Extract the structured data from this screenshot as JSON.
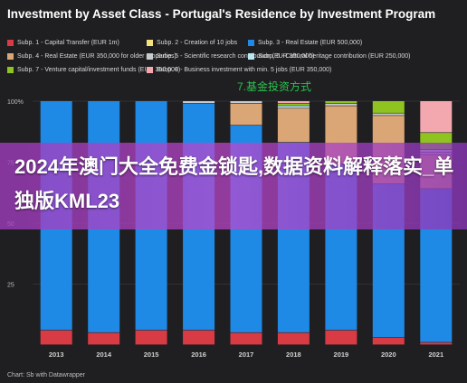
{
  "chart_data": {
    "type": "bar",
    "stacked": true,
    "title": "Investment by Asset Class - Portugal's Residence by Investment Program",
    "categories": [
      "2013",
      "2014",
      "2015",
      "2016",
      "2017",
      "2018",
      "2019",
      "2020",
      "2021"
    ],
    "y_ticks": [
      "100%",
      "75",
      "50",
      "25"
    ],
    "ylim": [
      0,
      100
    ],
    "grid": true,
    "legend_position": "top",
    "series": [
      {
        "name": "Subp. 1 - Capital Transfer (EUR 1m)",
        "color": "#d83b44",
        "values": [
          6,
          5,
          6,
          6,
          5,
          5,
          6,
          3,
          1
        ]
      },
      {
        "name": "Subp. 2 - Creation of 10 jobs",
        "color": "#f2e37a",
        "values": [
          0,
          0,
          0,
          0,
          0,
          0,
          0,
          0,
          0
        ]
      },
      {
        "name": "Subp. 3 - Real Estate (EUR 500,000)",
        "color": "#1e8ae6",
        "values": [
          94,
          95,
          94,
          93,
          85,
          78,
          68,
          63,
          63
        ]
      },
      {
        "name": "Subp. 4 - Real Estate (EUR 350,000 for older properties)",
        "color": "#dba675",
        "values": [
          0,
          0,
          0,
          0,
          9,
          14,
          24,
          28,
          14
        ]
      },
      {
        "name": "Subp. 5 - Scientific research contribution (EUR 350,000)",
        "color": "#c6cbd0",
        "values": [
          0,
          0,
          0,
          1,
          1,
          0,
          1,
          1,
          1
        ]
      },
      {
        "name": "Subp. 6 - Cultural heritage contribution (EUR 250,000)",
        "color": "#b8e9f2",
        "values": [
          0,
          0,
          0,
          0,
          0,
          1,
          0,
          0,
          1
        ]
      },
      {
        "name": "Subp. 7 - Venture capital/investment funds (EUR 350,000)",
        "color": "#8fc31f",
        "values": [
          0,
          0,
          0,
          0,
          0,
          1,
          1,
          5,
          7
        ]
      },
      {
        "name": "Subp. 8 - Business investment with min. 5 jobs (EUR 350,000)",
        "color": "#f3a8b0",
        "values": [
          0,
          0,
          0,
          0,
          0,
          1,
          0,
          0,
          13
        ]
      }
    ]
  },
  "annotation": "7.基金投资方式",
  "banner": "2024年澳门大全免费金锁匙,数据资料解释落实_单独版KML23",
  "credit": "Chart: Sb with Datawrapper"
}
